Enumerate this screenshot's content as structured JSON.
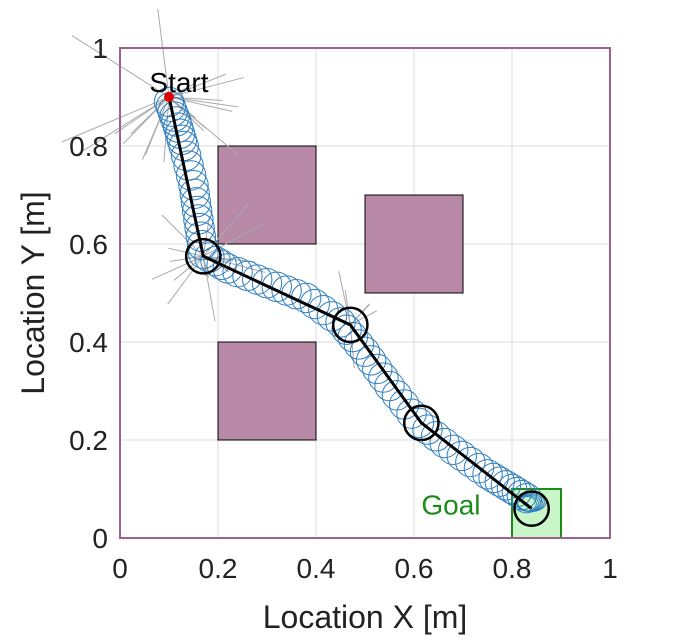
{
  "chart_data": {
    "type": "scatter",
    "xlabel": "Location X [m]",
    "ylabel": "Location Y [m]",
    "xlim": [
      0,
      1
    ],
    "ylim": [
      0,
      1
    ],
    "xticks": [
      0,
      0.2,
      0.4,
      0.6,
      0.8,
      1
    ],
    "yticks": [
      0,
      0.2,
      0.4,
      0.6,
      0.8,
      1
    ],
    "xtick_labels": [
      "0",
      "0.2",
      "0.4",
      "0.6",
      "0.8",
      "1"
    ],
    "ytick_labels": [
      "0",
      "0.2",
      "0.4",
      "0.6",
      "0.8",
      "1"
    ],
    "grid": true,
    "obstacles": [
      {
        "x0": 0.2,
        "y0": 0.6,
        "x1": 0.4,
        "y1": 0.8
      },
      {
        "x0": 0.5,
        "y0": 0.5,
        "x1": 0.7,
        "y1": 0.7
      },
      {
        "x0": 0.2,
        "y0": 0.2,
        "x1": 0.4,
        "y1": 0.4
      }
    ],
    "goal_region": {
      "x0": 0.8,
      "y0": 0.0,
      "x1": 0.9,
      "y1": 0.1
    },
    "start_point": {
      "x": 0.1,
      "y": 0.9
    },
    "annotations": [
      {
        "text": "Start",
        "x": 0.06,
        "y": 0.91
      },
      {
        "text": "Goal",
        "x": 0.615,
        "y": 0.048
      }
    ],
    "path": [
      {
        "x": 0.1,
        "y": 0.9
      },
      {
        "x": 0.17,
        "y": 0.575
      },
      {
        "x": 0.47,
        "y": 0.435
      },
      {
        "x": 0.615,
        "y": 0.235
      },
      {
        "x": 0.84,
        "y": 0.06
      }
    ],
    "waypoint_radius": 0.035,
    "uncertainty_path": [
      {
        "x": 0.1,
        "y": 0.89
      },
      {
        "x": 0.115,
        "y": 0.85
      },
      {
        "x": 0.13,
        "y": 0.8
      },
      {
        "x": 0.15,
        "y": 0.72
      },
      {
        "x": 0.16,
        "y": 0.65
      },
      {
        "x": 0.17,
        "y": 0.58
      },
      {
        "x": 0.22,
        "y": 0.55
      },
      {
        "x": 0.3,
        "y": 0.52
      },
      {
        "x": 0.38,
        "y": 0.49
      },
      {
        "x": 0.45,
        "y": 0.44
      },
      {
        "x": 0.5,
        "y": 0.38
      },
      {
        "x": 0.55,
        "y": 0.31
      },
      {
        "x": 0.61,
        "y": 0.235
      },
      {
        "x": 0.68,
        "y": 0.18
      },
      {
        "x": 0.75,
        "y": 0.13
      },
      {
        "x": 0.8,
        "y": 0.1
      },
      {
        "x": 0.84,
        "y": 0.075
      }
    ],
    "uncertainty_radius": 0.03,
    "colors": {
      "obstacle_fill": "#b88aa8",
      "frame": "#a0608e",
      "grid": "#dddddd",
      "path": "#000000",
      "uncertainty": "#2f7fc1",
      "sampled_paths": "#aaaaaa",
      "start_marker": "#e00000",
      "goal_fill": "#c9f5c9",
      "goal_edge": "#1a8c1a",
      "goal_text": "#1a8c1a",
      "start_text": "#000000"
    }
  }
}
